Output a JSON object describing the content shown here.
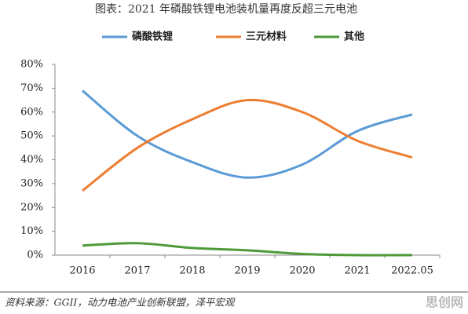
{
  "chart_data": {
    "type": "line",
    "title": "图表：2021 年磷酸铁锂电池装机量再度反超三元电池",
    "categories": [
      "2016",
      "2017",
      "2018",
      "2019",
      "2020",
      "2021",
      "2022.05"
    ],
    "series": [
      {
        "name": "磷酸铁锂",
        "color": "#5b9bd5",
        "values": [
          69,
          50,
          39,
          32.5,
          38,
          52,
          59
        ]
      },
      {
        "name": "三元材料",
        "color": "#ed7d31",
        "values": [
          27,
          45,
          57,
          65,
          60,
          48,
          41
        ]
      },
      {
        "name": "其他",
        "color": "#4e9a38",
        "values": [
          4,
          5,
          3,
          2,
          0.5,
          0,
          0
        ]
      }
    ],
    "ylim": [
      0,
      80
    ],
    "yticks": [
      {
        "value": 0,
        "label": "0%"
      },
      {
        "value": 10,
        "label": "10%"
      },
      {
        "value": 20,
        "label": "20%"
      },
      {
        "value": 30,
        "label": "30%"
      },
      {
        "value": 40,
        "label": "40%"
      },
      {
        "value": 50,
        "label": "50%"
      },
      {
        "value": 60,
        "label": "60%"
      },
      {
        "value": 70,
        "label": "70%"
      },
      {
        "value": 80,
        "label": "80%"
      }
    ],
    "source": "资料来源：GGII，动力电池产业创新联盟，泽平宏观",
    "watermark": "思创网"
  }
}
